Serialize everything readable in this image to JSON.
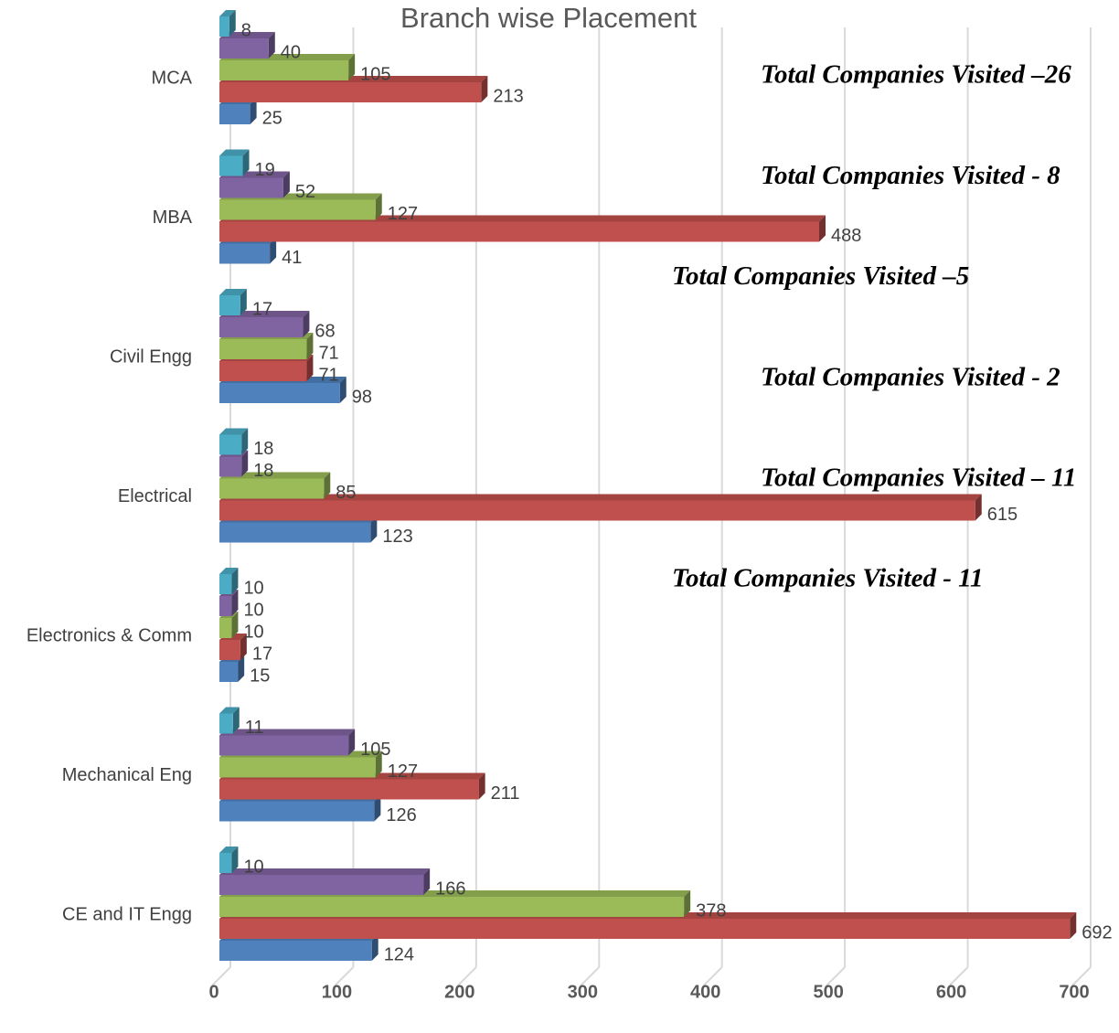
{
  "chart_data": {
    "type": "bar",
    "orientation": "horizontal",
    "title": "Branch wise Placement",
    "categories": [
      "MCA",
      "MBA",
      "Civil Engg",
      "Electrical",
      "Electronics & Comm",
      "Mechanical Eng",
      "CE and IT Engg"
    ],
    "series": [
      {
        "color": "#4f81bd",
        "values": [
          25,
          41,
          98,
          123,
          15,
          126,
          124
        ]
      },
      {
        "color": "#c0504d",
        "values": [
          213,
          488,
          71,
          615,
          17,
          211,
          692
        ]
      },
      {
        "color": "#9bbb59",
        "values": [
          105,
          127,
          71,
          85,
          10,
          127,
          378
        ]
      },
      {
        "color": "#8064a2",
        "values": [
          40,
          52,
          68,
          18,
          10,
          105,
          166
        ]
      },
      {
        "color": "#4bacc6",
        "values": [
          8,
          19,
          17,
          18,
          10,
          11,
          10
        ]
      }
    ],
    "xlim": [
      0,
      700
    ],
    "xticks": [
      0,
      100,
      200,
      300,
      400,
      500,
      600,
      700
    ],
    "grid": true,
    "annotations": [
      "Total Companies Visited –26",
      "Total Companies Visited - 8",
      "Total Companies Visited –5",
      "Total Companies Visited - 2",
      "Total Companies Visited – 11",
      "Total Companies Visited - 11"
    ]
  }
}
